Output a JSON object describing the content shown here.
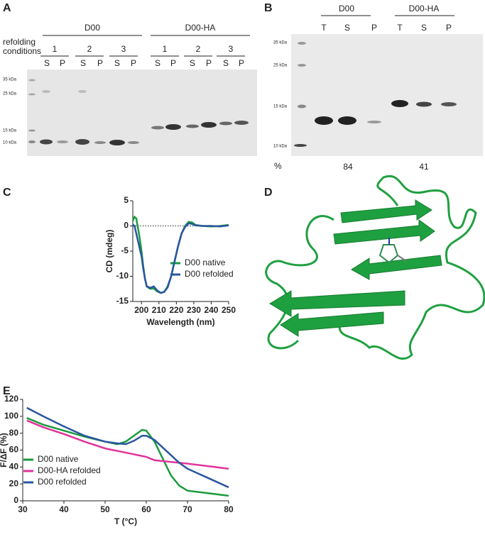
{
  "panel_a": {
    "label": "A",
    "refolding_conditions": [
      "refolding",
      "conditions"
    ],
    "groups": [
      "D00",
      "D00-HA"
    ],
    "conditions": [
      "1",
      "2",
      "3",
      "1",
      "2",
      "3"
    ],
    "lanes": [
      "S",
      "P",
      "S",
      "P",
      "S",
      "P",
      "S",
      "P",
      "S",
      "P",
      "S",
      "P"
    ],
    "markers": [
      "35 kDa",
      "25 kDa",
      "15 kDa",
      "10 kDa"
    ]
  },
  "panel_b": {
    "label": "B",
    "groups": [
      "D00",
      "D00-HA"
    ],
    "lanes": [
      "T",
      "S",
      "P",
      "T",
      "S",
      "P"
    ],
    "markers": [
      "35 kDa",
      "25 kDa",
      "15 kDa",
      "10 kDa"
    ],
    "percent_label": "%",
    "percents": [
      "84",
      "41"
    ]
  },
  "panel_d": {
    "label": "D"
  },
  "chart_data": [
    {
      "type": "line",
      "panel": "C",
      "xlabel": "Wavelength (nm)",
      "ylabel": "CD  (mdeg)",
      "x": [
        195,
        196,
        197,
        198,
        199,
        200,
        201,
        202,
        203,
        205,
        207,
        209,
        211,
        213,
        215,
        217,
        219,
        221,
        223,
        225,
        227,
        229,
        231,
        235,
        240,
        245,
        250
      ],
      "xlim": [
        195,
        250
      ],
      "xticks": [
        200,
        210,
        220,
        230,
        240,
        250
      ],
      "ylim": [
        -15,
        5
      ],
      "yticks": [
        -15,
        -10,
        -5,
        0,
        5
      ],
      "reference_line": 0,
      "series": [
        {
          "name": "D00 native",
          "color": "#1a9a3c",
          "values": [
            1.0,
            1.8,
            1.5,
            -0.5,
            -2.5,
            -5,
            -8,
            -10.5,
            -12,
            -12.5,
            -12.4,
            -13,
            -13.3,
            -13.1,
            -12,
            -10,
            -7,
            -4,
            -1.5,
            0,
            0.8,
            0.7,
            0.2,
            0,
            -0.1,
            0,
            0.2
          ]
        },
        {
          "name": "D00 refolded",
          "color": "#2a55a0",
          "values": [
            0.3,
            0,
            -1.5,
            -3,
            -4.5,
            -6,
            -8.5,
            -10.5,
            -12,
            -12.3,
            -12,
            -12.8,
            -13.3,
            -13.1,
            -12.2,
            -10,
            -7,
            -4,
            -1.5,
            -0.2,
            0.5,
            0.4,
            0.1,
            0,
            0,
            -0.1,
            0.1
          ]
        }
      ]
    },
    {
      "type": "line",
      "panel": "E",
      "xlabel": "T (°C)",
      "ylabel": "F/ΔF (%)",
      "x": [
        31,
        35,
        40,
        45,
        50,
        53,
        55,
        57,
        59,
        60,
        62,
        64,
        66,
        68,
        70,
        75,
        80
      ],
      "xlim": [
        30,
        80
      ],
      "xticks": [
        30,
        40,
        50,
        60,
        70,
        80
      ],
      "ylim": [
        0,
        120
      ],
      "yticks": [
        0,
        20,
        40,
        60,
        80,
        100,
        120
      ],
      "series": [
        {
          "name": "D00 native",
          "color": "#1a9a3c",
          "values": [
            98,
            90,
            83,
            76,
            70,
            67,
            70,
            77,
            84,
            83,
            70,
            50,
            30,
            18,
            12,
            9,
            6
          ]
        },
        {
          "name": "D00-HA refolded",
          "color": "#e0339a",
          "values": [
            95,
            87,
            79,
            70,
            62,
            59,
            57,
            55,
            53,
            52,
            48,
            47,
            46,
            45,
            44,
            41,
            38
          ]
        },
        {
          "name": "D00 refolded",
          "color": "#2a55a0",
          "values": [
            110,
            100,
            88,
            77,
            70,
            68,
            67,
            71,
            77,
            77,
            72,
            63,
            54,
            45,
            38,
            27,
            16
          ]
        }
      ]
    }
  ]
}
